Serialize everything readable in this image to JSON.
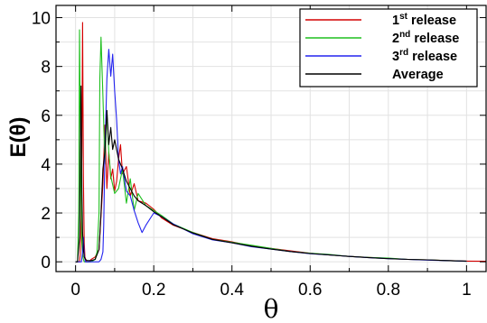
{
  "chart_data": {
    "type": "line",
    "title": "",
    "xlabel": "θ",
    "ylabel": "E(θ)",
    "xlim": [
      -0.05,
      1.05
    ],
    "ylim": [
      -0.4,
      10.5
    ],
    "x_ticks": [
      0,
      0.2,
      0.4,
      0.6,
      0.8,
      1
    ],
    "x_tick_labels": [
      "0",
      "0.2",
      "0.4",
      "0.6",
      "0.8",
      "1"
    ],
    "y_ticks": [
      0,
      2,
      4,
      6,
      8,
      10
    ],
    "y_tick_labels": [
      "0",
      "2",
      "4",
      "6",
      "8",
      "10"
    ],
    "grid": true,
    "legend_position": "top-right",
    "series": [
      {
        "name": "1st release",
        "legend": {
          "num": "1",
          "sup": "st",
          "rest": " release"
        },
        "color": "#d40000",
        "x": [
          0,
          0.01,
          0.012,
          0.014,
          0.016,
          0.018,
          0.02,
          0.022,
          0.024,
          0.026,
          0.028,
          0.03,
          0.035,
          0.04,
          0.05,
          0.06,
          0.07,
          0.075,
          0.08,
          0.085,
          0.09,
          0.095,
          0.1,
          0.105,
          0.11,
          0.115,
          0.12,
          0.13,
          0.14,
          0.15,
          0.16,
          0.18,
          0.2,
          0.22,
          0.25,
          0.3,
          0.35,
          0.4,
          0.45,
          0.5,
          0.55,
          0.6,
          0.65,
          0.7,
          0.75,
          0.8,
          0.85,
          0.9,
          0.95,
          1.0,
          1.05
        ],
        "y": [
          0,
          0,
          0.3,
          1.8,
          4.5,
          9.8,
          3.5,
          0.8,
          0.2,
          0.1,
          0.0,
          0.0,
          0.0,
          0.1,
          0.2,
          0.5,
          3.2,
          5.6,
          3.0,
          4.5,
          3.4,
          3.8,
          2.9,
          3.3,
          4.2,
          4.8,
          3.6,
          3.9,
          2.7,
          3.2,
          2.5,
          2.4,
          2.15,
          1.8,
          1.5,
          1.2,
          0.95,
          0.82,
          0.65,
          0.55,
          0.45,
          0.35,
          0.28,
          0.22,
          0.18,
          0.14,
          0.1,
          0.08,
          0.05,
          0.03,
          0.02
        ]
      },
      {
        "name": "2nd release",
        "legend": {
          "num": "2",
          "sup": "nd",
          "rest": " release"
        },
        "color": "#1fbf1f",
        "x": [
          0,
          0.005,
          0.008,
          0.01,
          0.012,
          0.014,
          0.016,
          0.018,
          0.02,
          0.022,
          0.025,
          0.03,
          0.04,
          0.05,
          0.055,
          0.06,
          0.062,
          0.065,
          0.07,
          0.075,
          0.08,
          0.085,
          0.09,
          0.1,
          0.11,
          0.12,
          0.13,
          0.14,
          0.15,
          0.16,
          0.18,
          0.2,
          0.22,
          0.25,
          0.3,
          0.35,
          0.4,
          0.45,
          0.5,
          0.55,
          0.6,
          0.65,
          0.7,
          0.75,
          0.8,
          0.85,
          0.9,
          0.95,
          1.0
        ],
        "y": [
          0,
          0,
          2.0,
          9.5,
          6.0,
          2.5,
          0.8,
          0.3,
          0.1,
          0.0,
          0.0,
          0.0,
          0.0,
          0.1,
          0.4,
          2.0,
          7.5,
          9.2,
          6.8,
          4.0,
          6.2,
          4.5,
          3.5,
          2.8,
          3.0,
          3.8,
          2.4,
          3.4,
          2.1,
          2.8,
          2.3,
          2.1,
          1.9,
          1.55,
          1.2,
          0.92,
          0.8,
          0.68,
          0.55,
          0.42,
          0.35,
          0.3,
          0.22,
          0.18,
          0.15,
          0.1,
          0.08,
          0.05,
          0.02
        ]
      },
      {
        "name": "3rd release",
        "legend": {
          "num": "3",
          "sup": "rd",
          "rest": " release"
        },
        "color": "#2323ef",
        "x": [
          0,
          0.01,
          0.015,
          0.018,
          0.02,
          0.022,
          0.025,
          0.03,
          0.04,
          0.05,
          0.06,
          0.065,
          0.07,
          0.072,
          0.075,
          0.08,
          0.085,
          0.09,
          0.095,
          0.1,
          0.105,
          0.11,
          0.115,
          0.12,
          0.13,
          0.14,
          0.15,
          0.16,
          0.17,
          0.18,
          0.2,
          0.22,
          0.25,
          0.3,
          0.35,
          0.4,
          0.45,
          0.5,
          0.55,
          0.6,
          0.65,
          0.7,
          0.75,
          0.8,
          0.85,
          0.9,
          0.95,
          1.0
        ],
        "y": [
          0,
          0,
          0.0,
          0.4,
          1.0,
          0.3,
          0.0,
          0.0,
          0.0,
          0.0,
          0.0,
          0.1,
          0.4,
          1.5,
          4.5,
          7.5,
          8.7,
          7.6,
          8.5,
          7.0,
          5.8,
          4.2,
          3.6,
          3.9,
          2.9,
          2.7,
          2.1,
          1.6,
          1.2,
          1.5,
          2.0,
          1.85,
          1.55,
          1.15,
          0.9,
          0.78,
          0.62,
          0.52,
          0.42,
          0.33,
          0.28,
          0.22,
          0.17,
          0.13,
          0.1,
          0.07,
          0.05,
          0.02
        ]
      },
      {
        "name": "Average",
        "legend": {
          "num": "",
          "sup": "",
          "rest": "Average"
        },
        "color": "#000000",
        "x": [
          0,
          0.005,
          0.01,
          0.012,
          0.014,
          0.016,
          0.018,
          0.02,
          0.022,
          0.025,
          0.03,
          0.04,
          0.05,
          0.06,
          0.065,
          0.07,
          0.075,
          0.08,
          0.085,
          0.09,
          0.095,
          0.1,
          0.11,
          0.12,
          0.13,
          0.14,
          0.15,
          0.16,
          0.18,
          0.2,
          0.22,
          0.25,
          0.3,
          0.35,
          0.4,
          0.45,
          0.5,
          0.55,
          0.6,
          0.65,
          0.7,
          0.75,
          0.8,
          0.85,
          0.9,
          0.95,
          1.0
        ],
        "y": [
          0,
          0,
          1.0,
          4.5,
          7.2,
          3.0,
          1.2,
          0.5,
          0.2,
          0.1,
          0.05,
          0.05,
          0.1,
          0.5,
          2.0,
          3.8,
          4.5,
          6.2,
          4.8,
          5.5,
          4.6,
          5.0,
          4.2,
          3.8,
          3.3,
          3.0,
          2.7,
          2.5,
          2.3,
          2.05,
          1.85,
          1.52,
          1.18,
          0.92,
          0.78,
          0.64,
          0.52,
          0.42,
          0.34,
          0.28,
          0.22,
          0.17,
          0.13,
          0.1,
          0.08,
          0.05,
          0.03
        ]
      }
    ]
  }
}
